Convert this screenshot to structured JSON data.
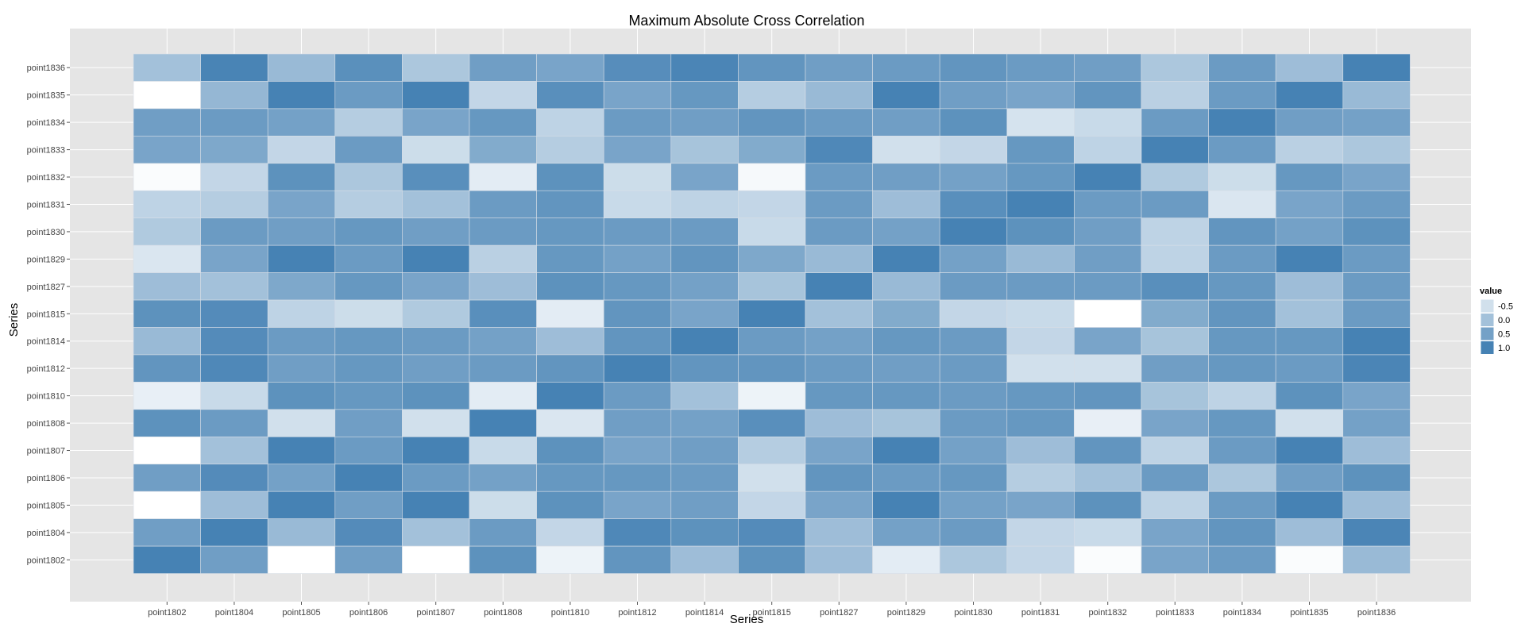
{
  "chart_data": {
    "type": "heatmap",
    "title": "Maximum Absolute Cross Correlation",
    "xlabel": "Series",
    "ylabel": "Series",
    "x_categories": [
      "point1802",
      "point1804",
      "point1805",
      "point1806",
      "point1807",
      "point1808",
      "point1810",
      "point1812",
      "point1814",
      "point1815",
      "point1827",
      "point1829",
      "point1830",
      "point1831",
      "point1832",
      "point1833",
      "point1834",
      "point1835",
      "point1836"
    ],
    "y_categories": [
      "point1836",
      "point1835",
      "point1834",
      "point1833",
      "point1832",
      "point1831",
      "point1830",
      "point1829",
      "point1827",
      "point1815",
      "point1814",
      "point1812",
      "point1810",
      "point1808",
      "point1807",
      "point1806",
      "point1805",
      "point1804",
      "point1802"
    ],
    "values": [
      [
        0.0,
        0.97,
        0.1,
        0.78,
        -0.1,
        0.55,
        0.45,
        0.82,
        0.95,
        0.7,
        0.55,
        0.6,
        0.7,
        0.6,
        0.55,
        -0.1,
        0.6,
        0.05,
        1.0
      ],
      [
        -1.0,
        0.15,
        1.0,
        0.6,
        1.0,
        -0.35,
        0.8,
        0.45,
        0.65,
        -0.2,
        0.1,
        1.0,
        0.55,
        0.45,
        0.7,
        -0.25,
        0.6,
        1.0,
        0.1
      ],
      [
        0.55,
        0.6,
        0.5,
        -0.2,
        0.45,
        0.65,
        -0.3,
        0.6,
        0.55,
        0.7,
        0.6,
        0.55,
        0.75,
        -0.55,
        -0.4,
        0.6,
        1.0,
        0.55,
        0.5
      ],
      [
        0.45,
        0.4,
        -0.35,
        0.6,
        -0.45,
        0.35,
        -0.2,
        0.45,
        -0.05,
        0.35,
        0.9,
        -0.5,
        -0.35,
        0.65,
        -0.3,
        1.0,
        0.6,
        -0.25,
        -0.1
      ],
      [
        -0.95,
        -0.35,
        0.75,
        -0.1,
        0.8,
        -0.7,
        0.75,
        -0.45,
        0.45,
        -0.9,
        0.6,
        0.55,
        0.5,
        0.65,
        1.0,
        -0.15,
        -0.45,
        0.65,
        0.45
      ],
      [
        -0.3,
        -0.2,
        0.45,
        -0.2,
        0.0,
        0.6,
        0.7,
        -0.4,
        -0.3,
        -0.35,
        0.6,
        0.05,
        0.8,
        1.0,
        0.6,
        0.6,
        -0.6,
        0.45,
        0.6
      ],
      [
        -0.15,
        0.6,
        0.55,
        0.65,
        0.55,
        0.6,
        0.65,
        0.6,
        0.6,
        -0.4,
        0.6,
        0.5,
        1.0,
        0.75,
        0.55,
        -0.3,
        0.7,
        0.5,
        0.75
      ],
      [
        -0.6,
        0.45,
        1.0,
        0.6,
        1.0,
        -0.25,
        0.65,
        0.5,
        0.7,
        0.4,
        0.1,
        1.0,
        0.5,
        0.1,
        0.55,
        -0.3,
        0.6,
        1.0,
        0.6
      ],
      [
        0.05,
        0.0,
        0.4,
        0.65,
        0.45,
        0.05,
        0.75,
        0.65,
        0.5,
        -0.05,
        1.0,
        0.1,
        0.6,
        0.6,
        0.6,
        0.8,
        0.65,
        0.05,
        0.6
      ],
      [
        0.75,
        0.85,
        -0.3,
        -0.45,
        -0.15,
        0.8,
        -0.7,
        0.7,
        0.45,
        1.0,
        0.0,
        0.35,
        -0.35,
        -0.4,
        -1.0,
        0.35,
        0.7,
        0.0,
        0.6
      ],
      [
        0.1,
        0.85,
        0.6,
        0.65,
        0.6,
        0.5,
        0.05,
        0.7,
        1.0,
        0.6,
        0.5,
        0.65,
        0.6,
        -0.35,
        0.45,
        -0.05,
        0.65,
        0.65,
        1.0
      ],
      [
        0.7,
        0.9,
        0.55,
        0.65,
        0.55,
        0.6,
        0.7,
        1.0,
        0.7,
        0.7,
        0.6,
        0.55,
        0.6,
        -0.5,
        -0.5,
        0.55,
        0.65,
        0.6,
        0.95
      ],
      [
        -0.75,
        -0.4,
        0.75,
        0.65,
        0.75,
        -0.7,
        1.0,
        0.6,
        0.0,
        -0.8,
        0.65,
        0.65,
        0.6,
        0.65,
        0.7,
        -0.05,
        -0.3,
        0.75,
        0.45
      ],
      [
        0.75,
        0.6,
        -0.5,
        0.55,
        -0.5,
        1.0,
        -0.6,
        0.55,
        0.5,
        0.8,
        0.05,
        -0.05,
        0.6,
        0.65,
        -0.75,
        0.45,
        0.65,
        -0.5,
        0.5
      ],
      [
        -1.0,
        0.0,
        1.0,
        0.6,
        1.0,
        -0.4,
        0.75,
        0.45,
        0.55,
        -0.2,
        0.45,
        1.0,
        0.5,
        0.05,
        0.7,
        -0.3,
        0.6,
        1.0,
        0.05
      ],
      [
        0.55,
        0.85,
        0.5,
        1.0,
        0.6,
        0.5,
        0.65,
        0.65,
        0.6,
        -0.5,
        0.7,
        0.6,
        0.65,
        -0.2,
        0.0,
        0.6,
        -0.1,
        0.55,
        0.75
      ],
      [
        -1.0,
        0.05,
        1.0,
        0.55,
        1.0,
        -0.45,
        0.75,
        0.45,
        0.55,
        -0.35,
        0.45,
        1.0,
        0.5,
        0.45,
        0.75,
        -0.3,
        0.6,
        1.0,
        0.05
      ],
      [
        0.55,
        1.0,
        0.1,
        0.85,
        0.0,
        0.6,
        -0.35,
        0.9,
        0.75,
        0.85,
        0.05,
        0.5,
        0.6,
        -0.35,
        -0.4,
        0.45,
        0.7,
        0.05,
        0.95
      ],
      [
        1.0,
        0.55,
        -1.0,
        0.55,
        -1.0,
        0.75,
        -0.8,
        0.7,
        0.05,
        0.75,
        0.05,
        -0.7,
        -0.1,
        -0.35,
        -0.95,
        0.45,
        0.6,
        -0.95,
        0.1
      ]
    ],
    "legend": {
      "title": "value",
      "entries": [
        "-0.5",
        "0.0",
        "0.5",
        "1.0"
      ],
      "entry_values": [
        -0.5,
        0.0,
        0.5,
        1.0
      ],
      "placement": "right"
    },
    "color_low": "#ffffff",
    "color_high": "#4682b4",
    "value_range": [
      -1,
      1
    ],
    "panel_background": "#e5e5e5",
    "grid_color": "#ffffff",
    "grid": true
  }
}
